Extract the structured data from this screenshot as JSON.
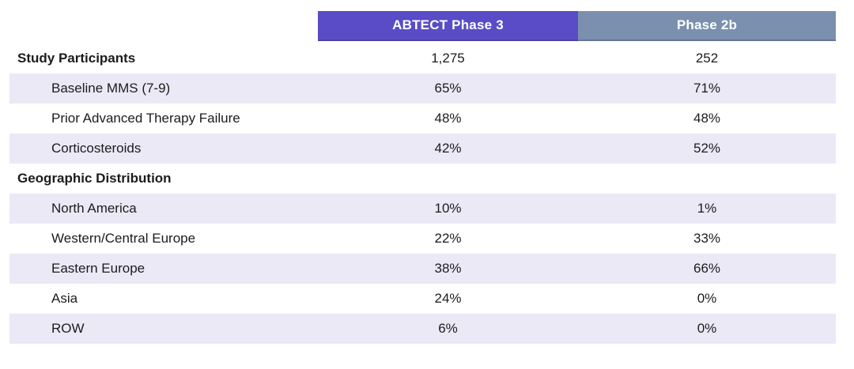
{
  "colors": {
    "phase3_header": "#5a4cc6",
    "phase2b_header": "#7b90ae",
    "row_shade": "#ebe9f6",
    "text": "#1c1c1c",
    "header_text": "#ffffff"
  },
  "chart_data": {
    "type": "table",
    "title": "",
    "columns": [
      "ABTECT Phase 3",
      "Phase 2b"
    ],
    "rows": [
      {
        "label": "Study Participants",
        "section": true,
        "values": [
          "1,275",
          "252"
        ]
      },
      {
        "label": "Baseline MMS (7-9)",
        "section": false,
        "values": [
          "65%",
          "71%"
        ]
      },
      {
        "label": "Prior Advanced Therapy Failure",
        "section": false,
        "values": [
          "48%",
          "48%"
        ]
      },
      {
        "label": "Corticosteroids",
        "section": false,
        "values": [
          "42%",
          "52%"
        ]
      },
      {
        "label": "Geographic Distribution",
        "section": true,
        "values": [
          "",
          ""
        ]
      },
      {
        "label": "North America",
        "section": false,
        "values": [
          "10%",
          "1%"
        ]
      },
      {
        "label": "Western/Central Europe",
        "section": false,
        "values": [
          "22%",
          "33%"
        ]
      },
      {
        "label": "Eastern Europe",
        "section": false,
        "values": [
          "38%",
          "66%"
        ]
      },
      {
        "label": "Asia",
        "section": false,
        "values": [
          "24%",
          "0%"
        ]
      },
      {
        "label": "ROW",
        "section": false,
        "values": [
          "6%",
          "0%"
        ]
      }
    ]
  }
}
